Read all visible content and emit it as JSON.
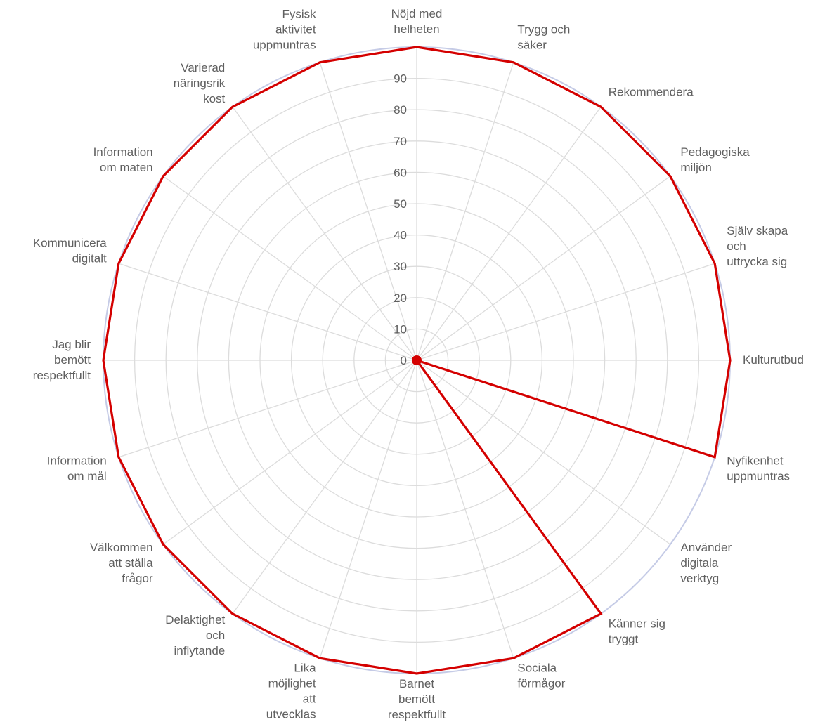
{
  "chart_data": {
    "type": "radar",
    "title": "",
    "categories": [
      [
        "Nöjd med",
        "helheten"
      ],
      [
        "Trygg och",
        "säker"
      ],
      [
        "Rekommendera"
      ],
      [
        "Pedagogiska",
        "miljön"
      ],
      [
        "Själv skapa",
        "och",
        "uttrycka sig"
      ],
      [
        "Kulturutbud"
      ],
      [
        "Nyfikenhet",
        "uppmuntras"
      ],
      [
        "Använder",
        "digitala",
        "verktyg"
      ],
      [
        "Känner sig",
        "tryggt"
      ],
      [
        "Sociala",
        "förmågor"
      ],
      [
        "Barnet",
        "bemött",
        "respektfullt"
      ],
      [
        "Lika",
        "möjlighet",
        "att",
        "utvecklas"
      ],
      [
        "Delaktighet",
        "och",
        "inflytande"
      ],
      [
        "Välkommen",
        "att ställa",
        "frågor"
      ],
      [
        "Information",
        "om mål"
      ],
      [
        "Jag blir",
        "bemött",
        "respektfullt"
      ],
      [
        "Kommunicera",
        "digitalt"
      ],
      [
        "Information",
        "om maten"
      ],
      [
        "Varierad",
        "näringsrik",
        "kost"
      ],
      [
        "Fysisk",
        "aktivitet",
        "uppmuntras"
      ]
    ],
    "series": [
      {
        "values": [
          100,
          100,
          100,
          100,
          100,
          100,
          100,
          0,
          100,
          100,
          100,
          100,
          100,
          100,
          100,
          100,
          100,
          100,
          100,
          100
        ],
        "color": "#d40000"
      }
    ],
    "rlim": [
      0,
      100
    ],
    "ticks": [
      0,
      10,
      20,
      30,
      40,
      50,
      60,
      70,
      80,
      90
    ],
    "grid": true,
    "colors": {
      "grid": "#dcdcdc",
      "outer_ring": "#c5cbe6",
      "series": "#d40000",
      "text": "#606060"
    }
  }
}
